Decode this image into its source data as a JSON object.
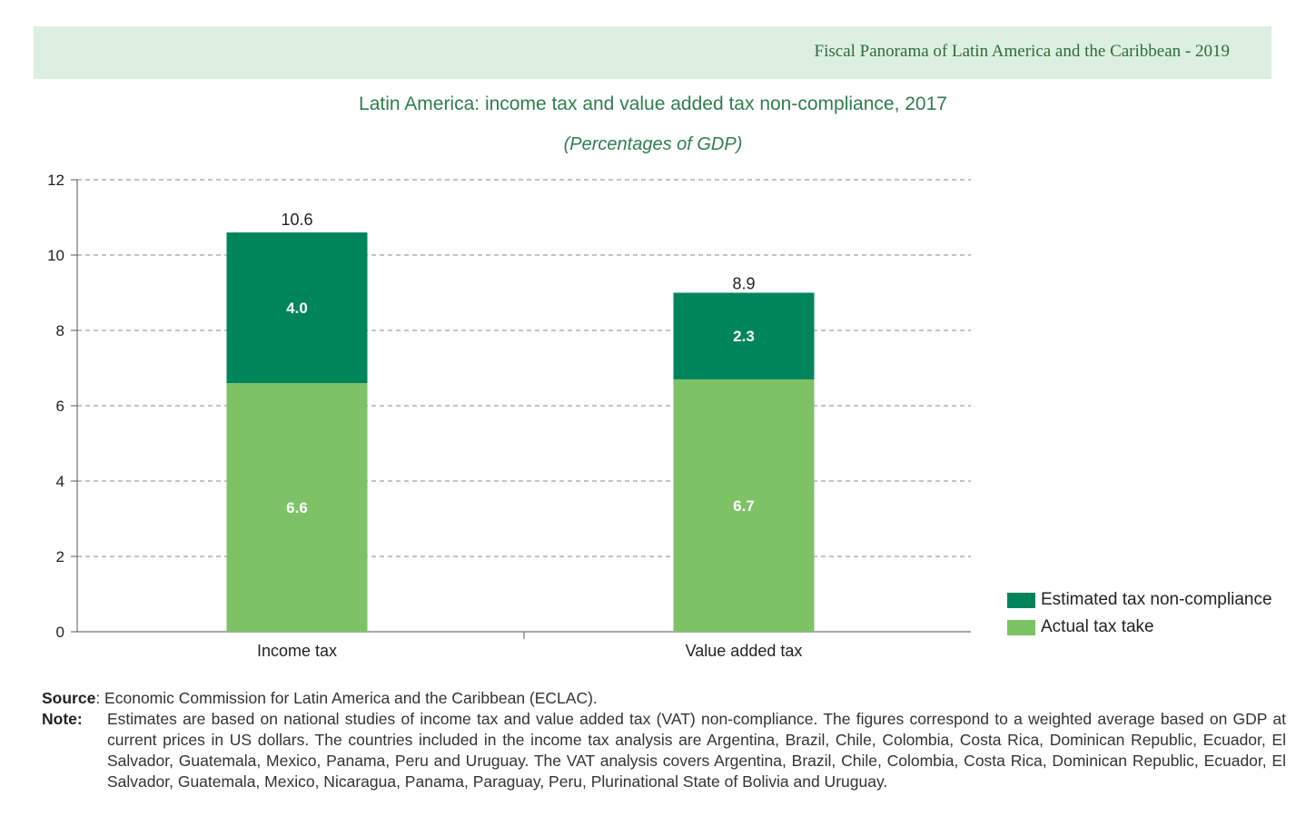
{
  "header": {
    "title": "Fiscal Panorama of Latin America and the Caribbean - 2019"
  },
  "chart_data": {
    "type": "bar",
    "stacked": true,
    "title": "Latin America: income tax and value added tax non-compliance, 2017",
    "subtitle": "(Percentages of GDP)",
    "categories": [
      "Income tax",
      "Value added tax"
    ],
    "series": [
      {
        "name": "Actual tax take",
        "values": [
          6.6,
          6.7
        ],
        "labels": [
          "6.6",
          "6.7"
        ],
        "color": "#7dc265"
      },
      {
        "name": "Estimated tax non-compliance",
        "values": [
          4.0,
          2.3
        ],
        "labels": [
          "4.0",
          "2.3"
        ],
        "color": "#00845a"
      }
    ],
    "totals": [
      10.6,
      8.9
    ],
    "total_labels": [
      "10.6",
      "8.9"
    ],
    "ylim": [
      0,
      12
    ],
    "yticks": [
      0,
      2,
      4,
      6,
      8,
      10,
      12
    ],
    "grid": true,
    "legend_position": "bottom-right"
  },
  "legend": {
    "items": [
      {
        "label": "Estimated tax non-compliance",
        "color": "#00845a"
      },
      {
        "label": "Actual tax take",
        "color": "#7dc265"
      }
    ]
  },
  "notes": {
    "source_key": "Source",
    "source_text": ": Economic Commission for Latin America and the Caribbean (ECLAC).",
    "note_key": "Note",
    "note_colon": ":",
    "note_text": "Estimates are based on national studies of income tax and value added tax (VAT) non-compliance. The figures correspond to a weighted average based on GDP at current prices in US dollars. The countries included in the income tax analysis are Argentina, Brazil, Chile, Colombia, Costa Rica, Dominican Republic, Ecuador, El Salvador, Guatemala, Mexico, Panama, Peru and Uruguay. The VAT analysis covers Argentina, Brazil, Chile, Colombia, Costa Rica, Dominican Republic, Ecuador, El Salvador, Guatemala, Mexico, Nicaragua, Panama, Paraguay, Peru, Plurinational State of Bolivia and Uruguay."
  }
}
